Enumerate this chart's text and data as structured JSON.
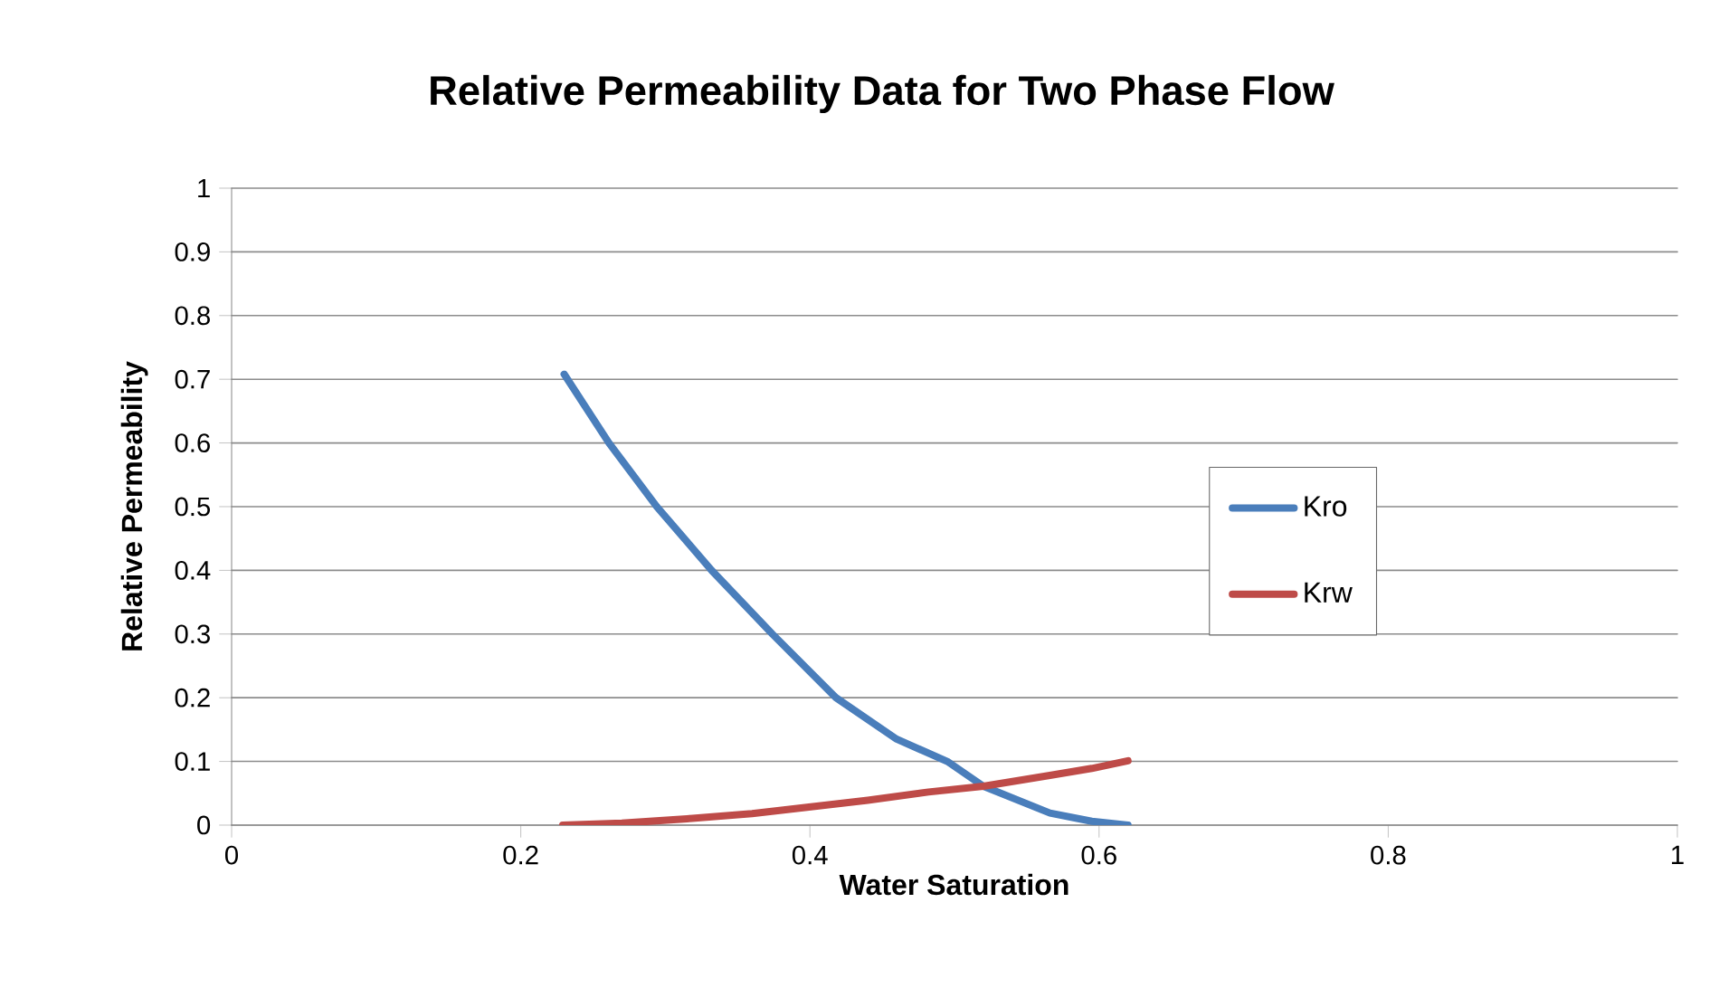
{
  "chart_data": {
    "type": "line",
    "title": "Relative Permeability Data for Two Phase Flow",
    "xlabel": "Water Saturation",
    "ylabel": "Relative Permeability",
    "series": [
      {
        "name": "Kro",
        "color": "#4a7ebb",
        "x": [
          0.23,
          0.261,
          0.294,
          0.332,
          0.374,
          0.418,
          0.46,
          0.495,
          0.52,
          0.566,
          0.595,
          0.62
        ],
        "values": [
          0.708,
          0.6,
          0.5,
          0.4,
          0.3,
          0.2,
          0.135,
          0.1,
          0.061,
          0.019,
          0.006,
          0
        ]
      },
      {
        "name": "Krw",
        "color": "#be4b48",
        "x": [
          0.229,
          0.27,
          0.315,
          0.36,
          0.398,
          0.44,
          0.482,
          0.52,
          0.566,
          0.595,
          0.62
        ],
        "values": [
          0,
          0.003,
          0.01,
          0.018,
          0.028,
          0.039,
          0.052,
          0.061,
          0.078,
          0.089,
          0.101
        ]
      }
    ],
    "xlim": [
      0,
      1
    ],
    "ylim": [
      0,
      1
    ],
    "xticks": [
      0,
      0.2,
      0.4,
      0.6,
      0.8,
      1
    ],
    "yticks": [
      0,
      0.1,
      0.2,
      0.3,
      0.4,
      0.5,
      0.6,
      0.7,
      0.8,
      0.9,
      1
    ],
    "grid": "y",
    "legend": "right",
    "marker": "none",
    "line_style": "solid"
  }
}
